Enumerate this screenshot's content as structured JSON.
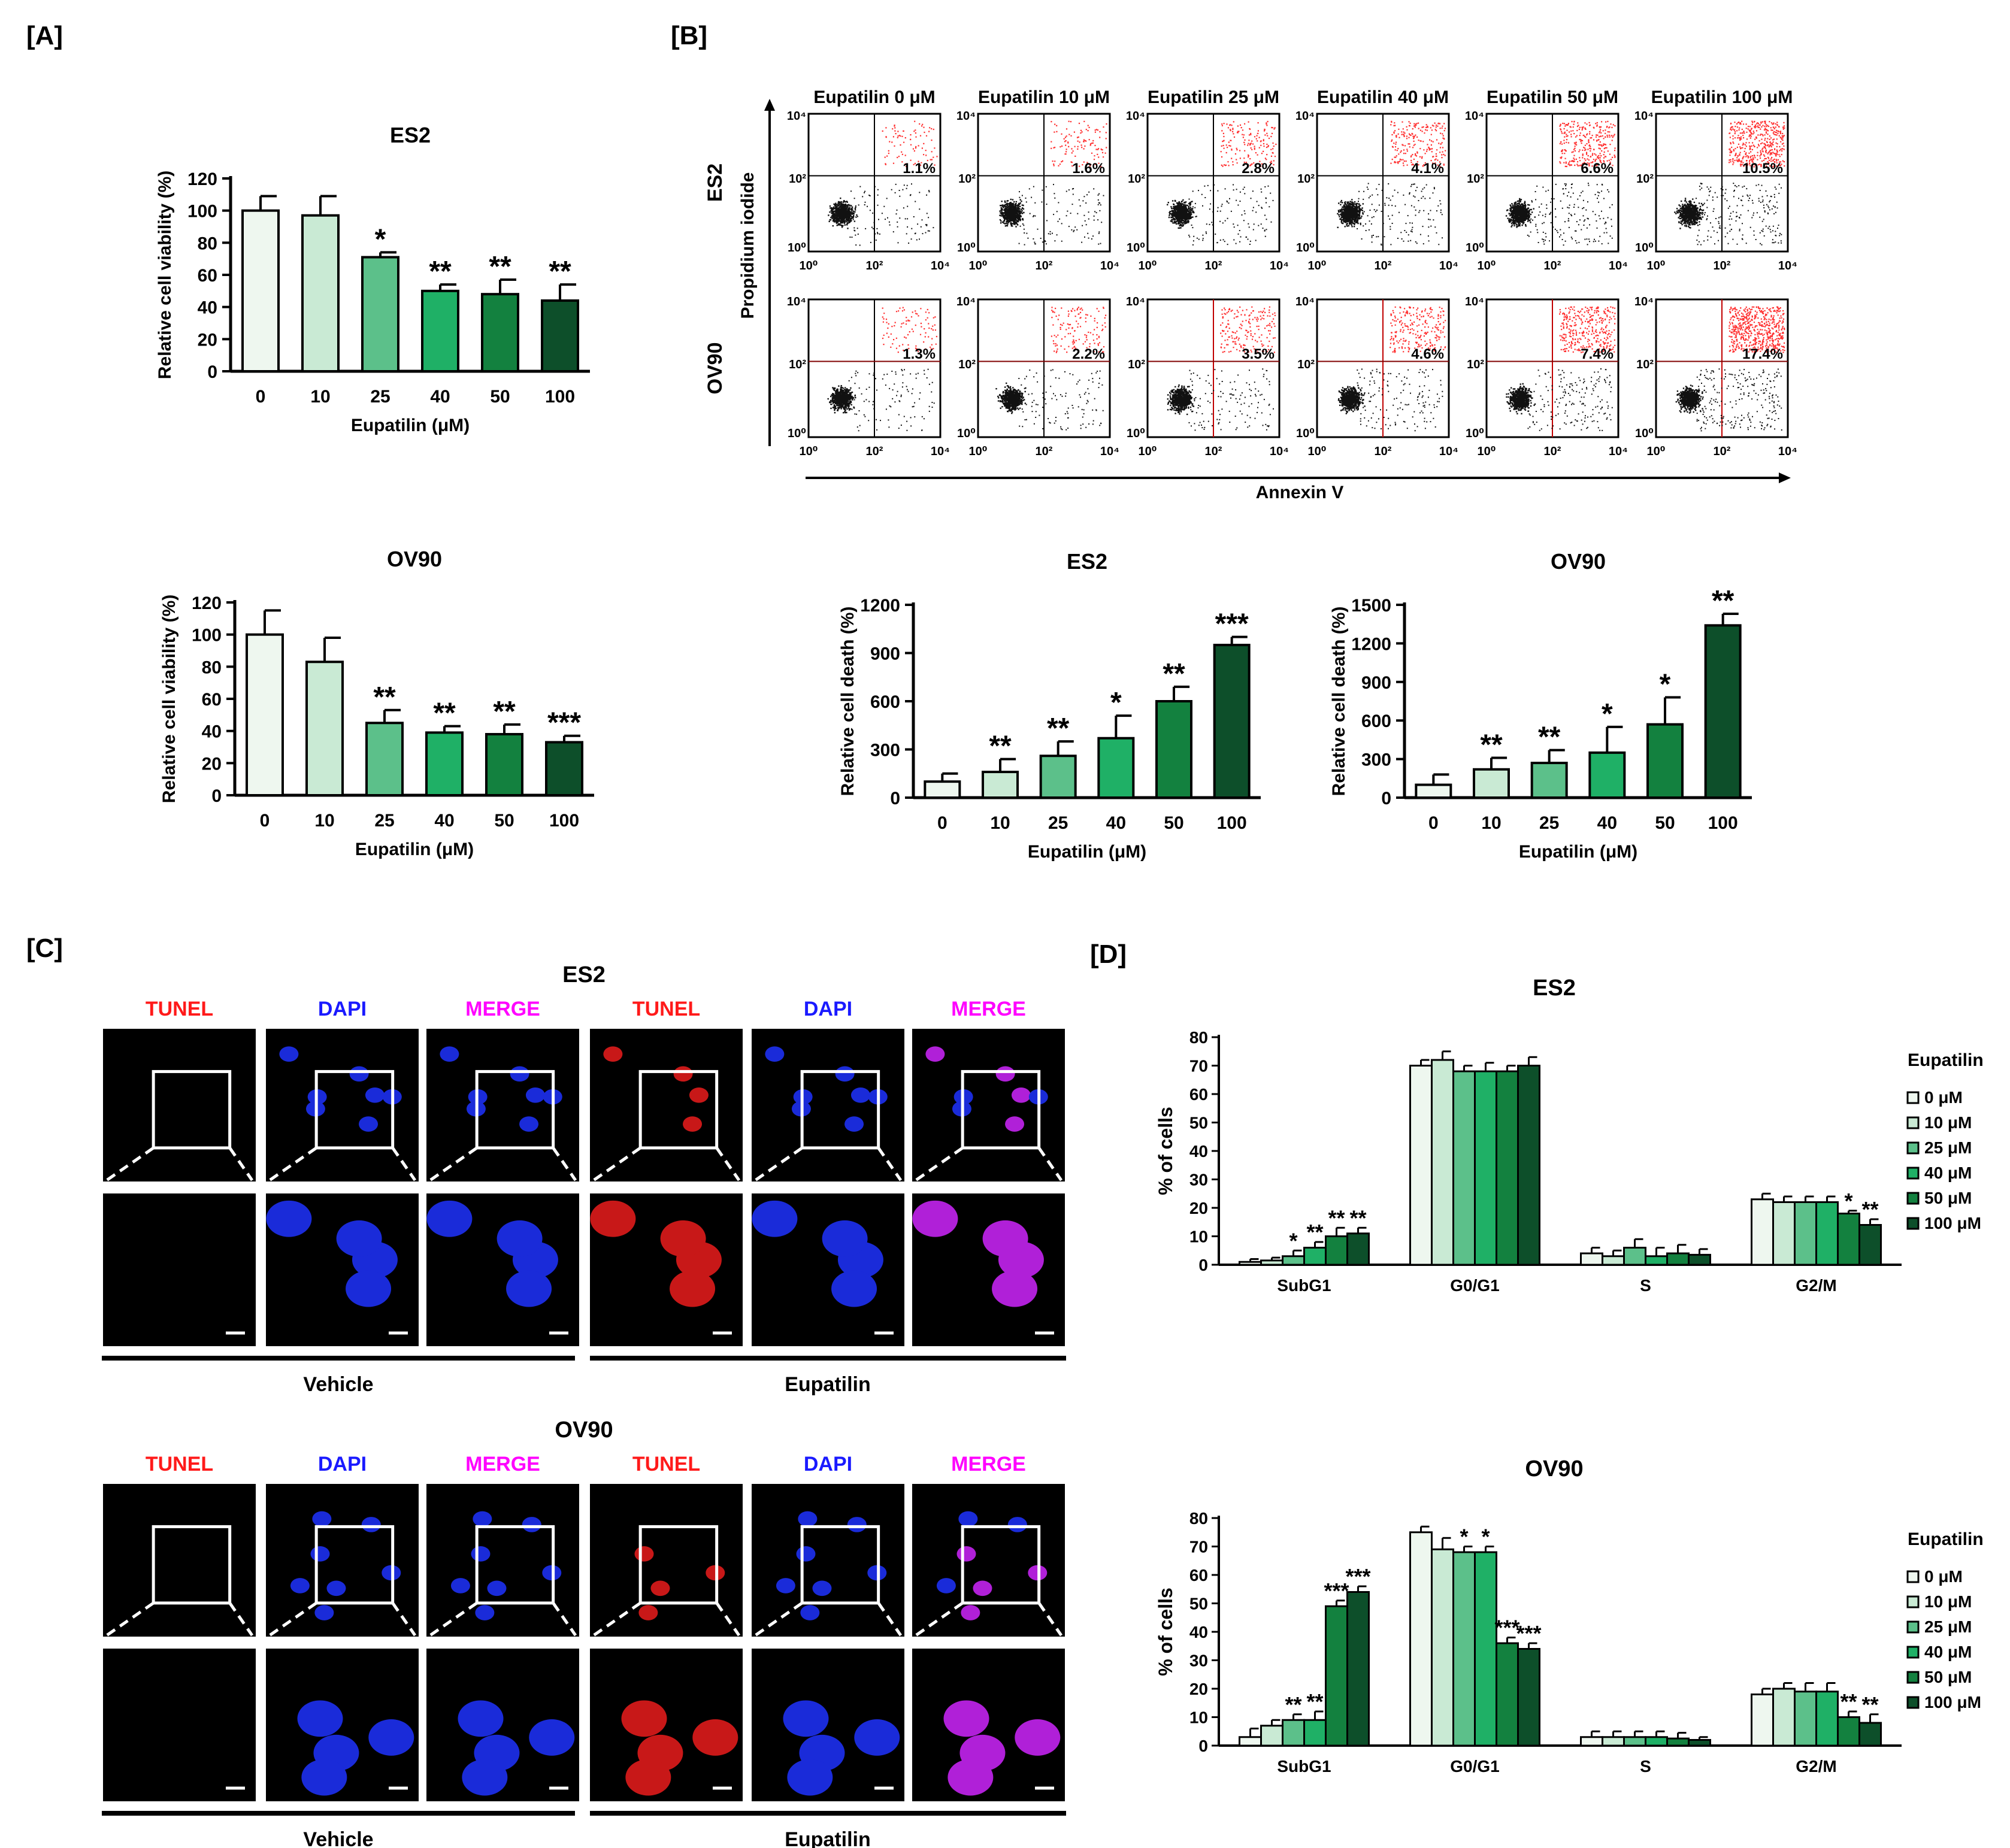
{
  "colors": {
    "c0": "#eef7ef",
    "c10": "#c9ead4",
    "c25": "#5cc08a",
    "c40": "#1fb066",
    "c50": "#13813f",
    "c100": "#0d4f2a",
    "outline": "#000000",
    "tunel": "#ff1a1a",
    "dapi": "#1a1aff",
    "merge": "#ff00ff",
    "flowRed": "#ff3030"
  },
  "panels": {
    "A": "[A]",
    "B": "[B]",
    "C": "[C]",
    "D": "[D]"
  },
  "panelA": [
    {
      "title": "ES2",
      "ylabel": "Relative cell viability (%)",
      "xlabel": "Eupatilin (μM)"
    },
    {
      "title": "OV90",
      "ylabel": "Relative cell viability (%)",
      "xlabel": "Eupatilin (μM)"
    }
  ],
  "panelB": {
    "headers": [
      "Eupatilin 0 μM",
      "Eupatilin 10 μM",
      "Eupatilin 25 μM",
      "Eupatilin 40 μM",
      "Eupatilin 50 μM",
      "Eupatilin 100 μM"
    ],
    "rows": [
      {
        "label": "ES2",
        "percents": [
          "1.1%",
          "1.6%",
          "2.8%",
          "4.1%",
          "6.6%",
          "10.5%"
        ],
        "density": [
          0.05,
          0.08,
          0.14,
          0.2,
          0.3,
          0.45
        ]
      },
      {
        "label": "OV90",
        "percents": [
          "1.3%",
          "2.2%",
          "3.5%",
          "4.6%",
          "7.4%",
          "17.4%"
        ],
        "density": [
          0.06,
          0.1,
          0.16,
          0.22,
          0.34,
          0.6
        ]
      }
    ],
    "ylabel": "Propidium iodide",
    "xlabel": "Annexin V",
    "ticks": [
      "10⁰",
      "10²",
      "10⁴"
    ]
  },
  "panelBbars": [
    {
      "title": "ES2",
      "ylabel": "Relative cell death (%)",
      "xlabel": "Eupatilin (μM)"
    },
    {
      "title": "OV90",
      "ylabel": "Relative cell death (%)",
      "xlabel": "Eupatilin (μM)"
    }
  ],
  "panelC": {
    "groups": [
      {
        "title": "ES2",
        "channels": [
          "TUNEL",
          "DAPI",
          "MERGE",
          "TUNEL",
          "DAPI",
          "MERGE"
        ],
        "conditions": [
          "Vehicle",
          "Eupatilin"
        ]
      },
      {
        "title": "OV90",
        "channels": [
          "TUNEL",
          "DAPI",
          "MERGE",
          "TUNEL",
          "DAPI",
          "MERGE"
        ],
        "conditions": [
          "Vehicle",
          "Eupatilin"
        ]
      }
    ]
  },
  "panelD": [
    {
      "title": "ES2",
      "ylabel": "% of cells",
      "legendTitle": "Eupatilin",
      "legend": [
        "0 μM",
        "10 μM",
        "25 μM",
        "40 μM",
        "50 μM",
        "100 μM"
      ]
    },
    {
      "title": "OV90",
      "ylabel": "% of cells",
      "legendTitle": "Eupatilin",
      "legend": [
        "0 μM",
        "10 μM",
        "25 μM",
        "40 μM",
        "50 μM",
        "100 μM"
      ]
    }
  ],
  "chart_data": [
    {
      "id": "A-ES2",
      "type": "bar",
      "title": "ES2",
      "xlabel": "Eupatilin (μM)",
      "ylabel": "Relative cell viability (%)",
      "categories": [
        "0",
        "10",
        "25",
        "40",
        "50",
        "100"
      ],
      "values": [
        100,
        97,
        71,
        50,
        48,
        44
      ],
      "errors": [
        9,
        12,
        3,
        4,
        9,
        10
      ],
      "sig": [
        "",
        "",
        "*",
        "**",
        "**",
        "**"
      ],
      "ylim": [
        0,
        120
      ],
      "yticks": [
        0,
        20,
        40,
        60,
        80,
        100,
        120
      ]
    },
    {
      "id": "A-OV90",
      "type": "bar",
      "title": "OV90",
      "xlabel": "Eupatilin (μM)",
      "ylabel": "Relative cell viability (%)",
      "categories": [
        "0",
        "10",
        "25",
        "40",
        "50",
        "100"
      ],
      "values": [
        100,
        83,
        45,
        39,
        38,
        33
      ],
      "errors": [
        15,
        15,
        8,
        4,
        6,
        4
      ],
      "sig": [
        "",
        "",
        "**",
        "**",
        "**",
        "***"
      ],
      "ylim": [
        0,
        120
      ],
      "yticks": [
        0,
        20,
        40,
        60,
        80,
        100,
        120
      ]
    },
    {
      "id": "B-ES2",
      "type": "bar",
      "title": "ES2",
      "xlabel": "Eupatilin (μM)",
      "ylabel": "Relative cell death (%)",
      "categories": [
        "0",
        "10",
        "25",
        "40",
        "50",
        "100"
      ],
      "values": [
        100,
        160,
        260,
        370,
        600,
        950
      ],
      "errors": [
        50,
        80,
        90,
        140,
        90,
        50
      ],
      "sig": [
        "",
        "**",
        "**",
        "*",
        "**",
        "***"
      ],
      "ylim": [
        0,
        1200
      ],
      "yticks": [
        0,
        300,
        600,
        900,
        1200
      ]
    },
    {
      "id": "B-OV90",
      "type": "bar",
      "title": "OV90",
      "xlabel": "Eupatilin (μM)",
      "ylabel": "Relative cell death (%)",
      "categories": [
        "0",
        "10",
        "25",
        "40",
        "50",
        "100"
      ],
      "values": [
        100,
        220,
        270,
        350,
        570,
        1340
      ],
      "errors": [
        80,
        90,
        100,
        200,
        210,
        90
      ],
      "sig": [
        "",
        "**",
        "**",
        "*",
        "*",
        "**"
      ],
      "ylim": [
        0,
        1500
      ],
      "yticks": [
        0,
        300,
        600,
        900,
        1200,
        1500
      ]
    },
    {
      "id": "D-ES2",
      "type": "bar",
      "title": "ES2",
      "ylabel": "% of cells",
      "categories": [
        "SubG1",
        "G0/G1",
        "S",
        "G2/M"
      ],
      "series": [
        {
          "name": "0 μM",
          "values": [
            1,
            70,
            4,
            23
          ],
          "errors": [
            1,
            2,
            2,
            2
          ]
        },
        {
          "name": "10 μM",
          "values": [
            1.5,
            72,
            3,
            22
          ],
          "errors": [
            1,
            3,
            2,
            2
          ]
        },
        {
          "name": "25 μM",
          "values": [
            3,
            68,
            6,
            22
          ],
          "errors": [
            2,
            2,
            3,
            2
          ]
        },
        {
          "name": "40 μM",
          "values": [
            6,
            68,
            3,
            22
          ],
          "errors": [
            2,
            3,
            3,
            2
          ]
        },
        {
          "name": "50 μM",
          "values": [
            10,
            68,
            4,
            18
          ],
          "errors": [
            3,
            2,
            3,
            1
          ]
        },
        {
          "name": "100 μM",
          "values": [
            11,
            70,
            3.5,
            14
          ],
          "errors": [
            2,
            3,
            2,
            2
          ]
        }
      ],
      "sig": [
        [
          "",
          "",
          "*",
          "**",
          "**",
          "**"
        ],
        [
          "",
          "",
          "",
          "",
          "",
          ""
        ],
        [
          "",
          "",
          "",
          "",
          "",
          ""
        ],
        [
          "",
          "",
          "",
          "",
          "*",
          "**"
        ]
      ],
      "ylim": [
        0,
        80
      ],
      "yticks": [
        0,
        10,
        20,
        30,
        40,
        50,
        60,
        70,
        80
      ]
    },
    {
      "id": "D-OV90",
      "type": "bar",
      "title": "OV90",
      "ylabel": "% of cells",
      "categories": [
        "SubG1",
        "G0/G1",
        "S",
        "G2/M"
      ],
      "series": [
        {
          "name": "0 μM",
          "values": [
            3,
            75,
            3,
            18
          ],
          "errors": [
            3,
            2,
            2,
            2
          ]
        },
        {
          "name": "10 μM",
          "values": [
            7,
            69,
            3,
            20
          ],
          "errors": [
            2,
            4,
            2,
            2
          ]
        },
        {
          "name": "25 μM",
          "values": [
            9,
            68,
            3,
            19
          ],
          "errors": [
            2,
            2,
            2,
            3
          ]
        },
        {
          "name": "40 μM",
          "values": [
            9,
            68,
            3,
            19
          ],
          "errors": [
            3,
            2,
            2,
            3
          ]
        },
        {
          "name": "50 μM",
          "values": [
            49,
            36,
            2.5,
            10
          ],
          "errors": [
            2,
            2,
            2,
            2
          ]
        },
        {
          "name": "100 μM",
          "values": [
            54,
            34,
            2,
            8
          ],
          "errors": [
            2,
            2,
            1,
            3
          ]
        }
      ],
      "sig": [
        [
          "",
          "",
          "**",
          "**",
          "***",
          "***"
        ],
        [
          "",
          "",
          "*",
          "*",
          "***",
          "***"
        ],
        [
          "",
          "",
          "",
          "",
          "",
          ""
        ],
        [
          "",
          "",
          "",
          "",
          "**",
          "**"
        ]
      ],
      "ylim": [
        0,
        80
      ],
      "yticks": [
        0,
        10,
        20,
        30,
        40,
        50,
        60,
        70,
        80
      ]
    }
  ]
}
